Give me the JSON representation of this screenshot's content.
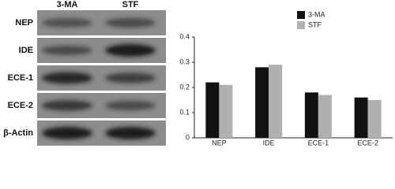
{
  "blot": {
    "columns": [
      "3-MA",
      "STF"
    ],
    "rows": [
      "NEP",
      "IDE",
      "ECE-1",
      "ECE-2",
      "β-Actin"
    ]
  },
  "chart_data": {
    "type": "bar",
    "categories": [
      "NEP",
      "IDE",
      "ECE-1",
      "ECE-2"
    ],
    "series": [
      {
        "name": "3-MA",
        "color": "#111111",
        "values": [
          0.22,
          0.28,
          0.18,
          0.16
        ]
      },
      {
        "name": "STF",
        "color": "#b0b0b0",
        "values": [
          0.21,
          0.29,
          0.17,
          0.15
        ]
      }
    ],
    "ylim": [
      0,
      0.4
    ],
    "yticks": [
      0,
      0.1,
      0.2,
      0.3,
      0.4
    ],
    "legend": "upper-right"
  }
}
